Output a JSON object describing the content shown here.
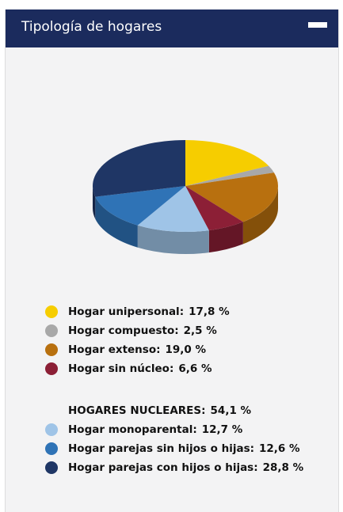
{
  "header": {
    "title": "Tipología de hogares"
  },
  "chart_data": {
    "type": "pie",
    "categories": [
      "Hogar unipersonal:",
      "Hogar compuesto:",
      "Hogar extenso:",
      "Hogar sin núcleo:",
      "Hogar monoparental:",
      "Hogar parejas sin hijos o hijas:",
      "Hogar parejas con hijos o hijas:"
    ],
    "values": [
      17.8,
      2.5,
      19.0,
      6.6,
      12.7,
      12.6,
      28.8
    ],
    "value_labels": [
      "17,8 %",
      "2,5 %",
      "19,0 %",
      "6,6 %",
      "12,7 %",
      "12,6 %",
      "28,8 %"
    ],
    "colors": [
      "#f6cd00",
      "#a8a8a8",
      "#b8700f",
      "#8c1f36",
      "#9fc4e7",
      "#2f73b6",
      "#1f3665"
    ],
    "subtotal": {
      "label": "HOGARES NUCLEARES:",
      "value": 54.1,
      "value_label": "54,1 %"
    }
  }
}
